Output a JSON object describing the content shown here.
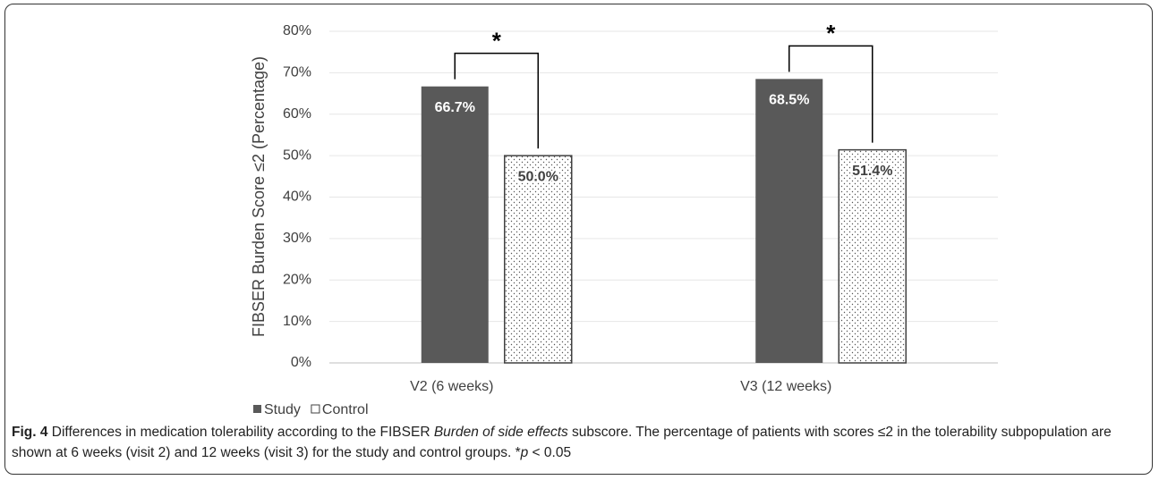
{
  "chart_data": {
    "type": "bar",
    "y_label": "FIBSER Burden Score ≤2 (Percentage)",
    "categories": [
      "V2 (6 weeks)",
      "V3 (12 weeks)"
    ],
    "series": [
      {
        "name": "Study",
        "color": "#595959",
        "values": [
          66.7,
          68.5
        ],
        "value_labels": [
          "66.7%",
          "68.5%"
        ]
      },
      {
        "name": "Control",
        "color": "#ffffff",
        "pattern": "dots",
        "values": [
          50.0,
          51.4
        ],
        "value_labels": [
          "50.0%",
          "51.4%"
        ]
      }
    ],
    "significance_labels": [
      "*",
      "*"
    ],
    "ylim": [
      0,
      80
    ],
    "yticks": [
      {
        "value": 0,
        "label": "0%"
      },
      {
        "value": 10,
        "label": "10%"
      },
      {
        "value": 20,
        "label": "20%"
      },
      {
        "value": 30,
        "label": "30%"
      },
      {
        "value": 40,
        "label": "40%"
      },
      {
        "value": 50,
        "label": "50%"
      },
      {
        "value": 60,
        "label": "60%"
      },
      {
        "value": 70,
        "label": "70%"
      },
      {
        "value": 80,
        "label": "80%"
      }
    ],
    "grid": true,
    "legend": "bottom-left"
  },
  "caption": {
    "label": "Fig. 4",
    "text1": "Differences in medication tolerability according to the FIBSER ",
    "italic1": "Burden of side effects",
    "text2": " subscore. The percentage of patients with scores ≤2 in the tolerability subpopulation are shown at 6 weeks (visit 2) and 12 weeks (visit 3) for the study and control groups. *",
    "italic2": "p",
    "text3": " < 0.05"
  }
}
